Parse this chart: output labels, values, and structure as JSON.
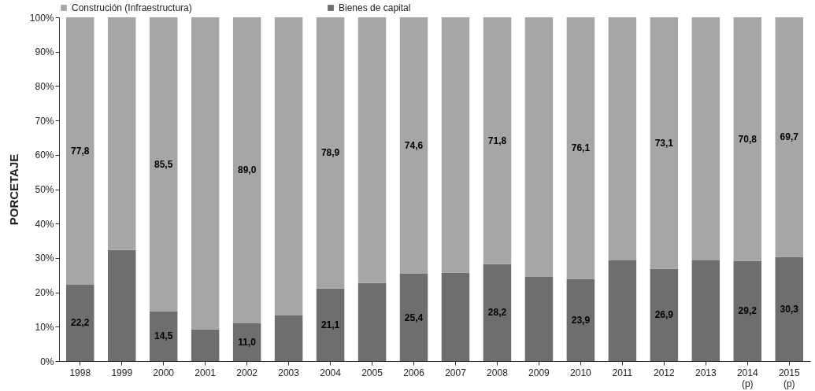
{
  "chart_data": {
    "type": "bar",
    "stacked": true,
    "ylabel": "PORCETAJE",
    "legend": "top",
    "grid": false,
    "categories": [
      "1998",
      "1999",
      "2000",
      "2001",
      "2002",
      "2003",
      "2004",
      "2005",
      "2006",
      "2007",
      "2008",
      "2009",
      "2010",
      "2011",
      "2012",
      "2013",
      "2014\n(p)",
      "2015\n(p)"
    ],
    "ylim": [
      0,
      100
    ],
    "yticks": [
      {
        "value": 0,
        "label": "0%"
      },
      {
        "value": 10,
        "label": "10%"
      },
      {
        "value": 20,
        "label": "20%"
      },
      {
        "value": 30,
        "label": "30%"
      },
      {
        "value": 40,
        "label": "40%"
      },
      {
        "value": 50,
        "label": "50%"
      },
      {
        "value": 60,
        "label": "60%"
      },
      {
        "value": 70,
        "label": "70%"
      },
      {
        "value": 80,
        "label": "80%"
      },
      {
        "value": 90,
        "label": "90%"
      },
      {
        "value": 100,
        "label": "100%"
      }
    ],
    "series": [
      {
        "name": "Bienes de capital",
        "color": "#6e6e6e",
        "values": [
          22.2,
          32.3,
          14.5,
          9.2,
          11.0,
          13.3,
          21.1,
          22.7,
          25.4,
          25.7,
          28.2,
          24.5,
          23.9,
          29.3,
          26.9,
          29.3,
          29.2,
          30.3
        ],
        "value_labels": [
          "22,2",
          null,
          "14,5",
          null,
          "11,0",
          null,
          "21,1",
          null,
          "25,4",
          null,
          "28,2",
          null,
          "23,9",
          null,
          "26,9",
          null,
          "29,2",
          "30,3"
        ]
      },
      {
        "name": "Construción (Infraestructura)",
        "color": "#a6a6a6",
        "values": [
          77.8,
          67.7,
          85.5,
          90.8,
          89.0,
          86.7,
          78.9,
          77.3,
          74.6,
          74.3,
          71.8,
          75.5,
          76.1,
          70.7,
          73.1,
          70.7,
          70.8,
          69.7
        ],
        "value_labels": [
          "77,8",
          null,
          "85,5",
          null,
          "89,0",
          null,
          "78,9",
          null,
          "74,6",
          null,
          "71,8",
          null,
          "76,1",
          null,
          "73,1",
          null,
          "70,8",
          "69,7"
        ]
      }
    ]
  }
}
